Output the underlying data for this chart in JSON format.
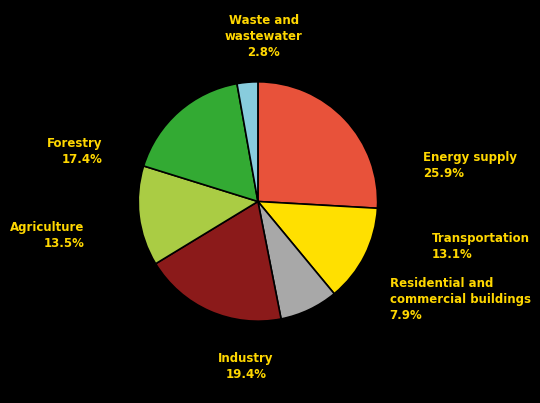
{
  "labels": [
    "Energy supply\n25.9%",
    "Transportation\n13.1%",
    "Residential and\ncommercial buildings\n7.9%",
    "Industry\n19.4%",
    "Agriculture\n13.5%",
    "Forestry\n17.4%",
    "Waste and\nwastewater\n2.8%"
  ],
  "values": [
    25.9,
    13.1,
    7.9,
    19.4,
    13.5,
    17.4,
    2.8
  ],
  "colors": [
    "#E8523A",
    "#FFE000",
    "#A8A8A8",
    "#8B1A1A",
    "#AACC44",
    "#33AA33",
    "#88CCDD"
  ],
  "background_color": "#000000",
  "label_color": "#FFD700",
  "label_fontsize": 8.5,
  "label_fontweight": "bold",
  "startangle": 90,
  "label_coords": [
    [
      1.38,
      0.3,
      "left"
    ],
    [
      1.45,
      -0.38,
      "left"
    ],
    [
      1.1,
      -0.82,
      "left"
    ],
    [
      -0.1,
      -1.38,
      "center"
    ],
    [
      -1.45,
      -0.28,
      "right"
    ],
    [
      -1.3,
      0.42,
      "right"
    ],
    [
      0.05,
      1.38,
      "center"
    ]
  ]
}
